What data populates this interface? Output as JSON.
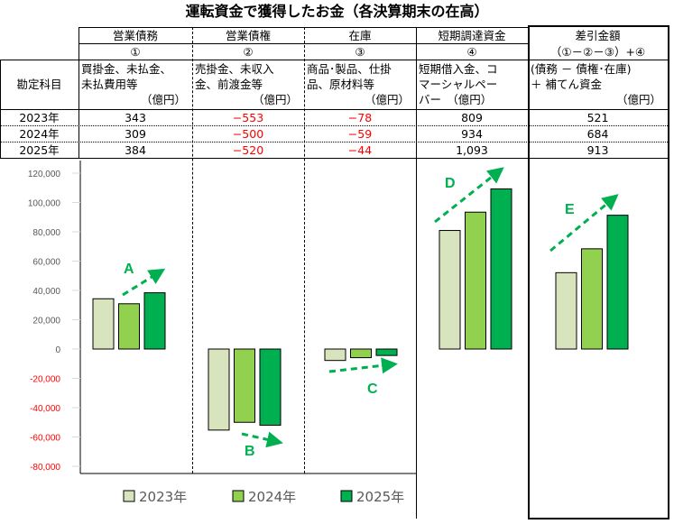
{
  "title": "運転資金で獲得したお金（各決算期末の在高）",
  "table": {
    "row_header": "勘定科目",
    "columns": [
      {
        "name": "営業債務",
        "num": "①",
        "desc1": "買掛金、未払金、",
        "desc2": "未払費用等",
        "unit": "（億円）"
      },
      {
        "name": "営業債権",
        "num": "②",
        "desc1": "売掛金、未収入",
        "desc2": "金、前渡金等",
        "unit": "（億円）"
      },
      {
        "name": "在庫",
        "num": "③",
        "desc1": "商品･製品、仕掛",
        "desc2": "品、原材料等",
        "unit": "（億円）"
      },
      {
        "name": "短期調達資金",
        "num": "④",
        "desc1": "短期借入金、コ",
        "desc2": "マーシャルペー",
        "unit": "バー　（億円）"
      },
      {
        "name": "差引金額",
        "num": "（①－②－③）+④",
        "desc1": "(債務 － 債権･在庫)",
        "desc2": "＋ 補てん資金",
        "unit": "（億円）"
      }
    ],
    "rows": [
      {
        "year": "2023年",
        "values": [
          "343",
          "−553",
          "−78",
          "809",
          "521"
        ]
      },
      {
        "year": "2024年",
        "values": [
          "309",
          "−500",
          "−59",
          "934",
          "684"
        ]
      },
      {
        "year": "2025年",
        "values": [
          "384",
          "−520",
          "−44",
          "1,093",
          "913"
        ]
      }
    ]
  },
  "chart_data": {
    "type": "bar",
    "categories": [
      "A",
      "B",
      "C",
      "D",
      "E"
    ],
    "series": [
      {
        "name": "2023年",
        "color": "#d7e4bd",
        "values": [
          34300,
          -55300,
          -7800,
          80900,
          52100
        ]
      },
      {
        "name": "2024年",
        "color": "#92d050",
        "values": [
          30900,
          -50000,
          -5900,
          93400,
          68400
        ]
      },
      {
        "name": "2025年",
        "color": "#00b050",
        "values": [
          38400,
          -52000,
          -4400,
          109300,
          91300
        ]
      }
    ],
    "ylim": [
      -80000,
      120000
    ],
    "yticks": [
      "120,000",
      "100,000",
      "80,000",
      "60,000",
      "40,000",
      "20,000",
      "0",
      "-20,000",
      "-40,000",
      "-60,000",
      "-80,000"
    ],
    "annotations": [
      "A",
      "B",
      "C",
      "D",
      "E"
    ],
    "legend_position": "bottom"
  }
}
